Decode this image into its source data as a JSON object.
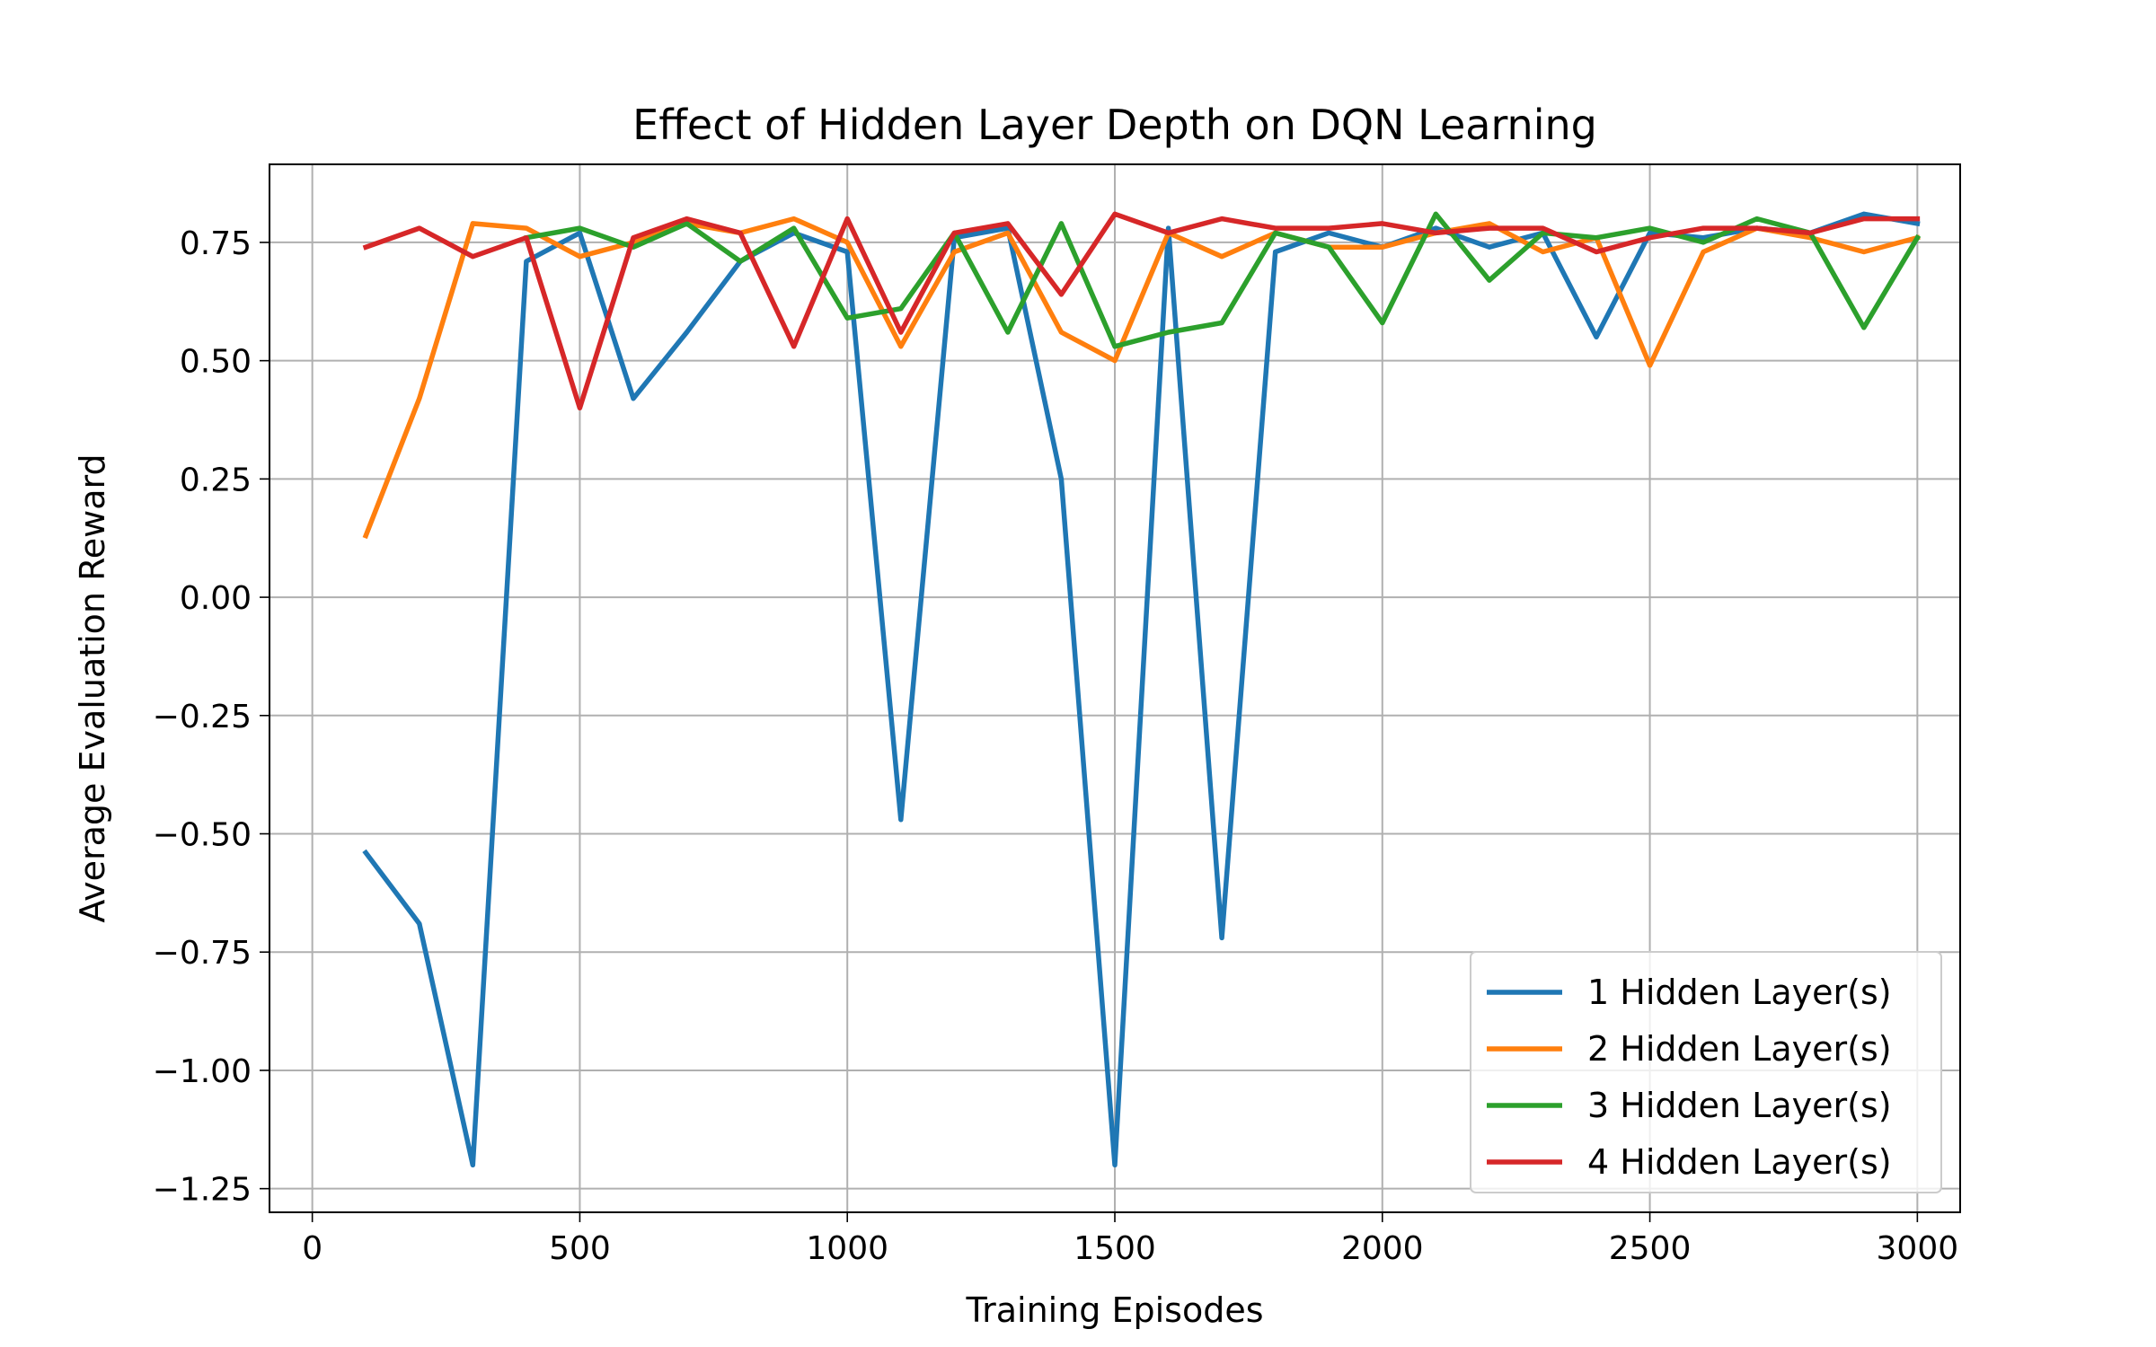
{
  "chart_data": {
    "type": "line",
    "title": "Effect of Hidden Layer Depth on DQN Learning",
    "xlabel": "Training Episodes",
    "ylabel": "Average Evaluation Reward",
    "xlim": [
      -80,
      3080
    ],
    "ylim": [
      -1.3,
      0.915
    ],
    "xticks": [
      0,
      500,
      1000,
      1500,
      2000,
      2500,
      3000
    ],
    "xtick_labels": [
      "0",
      "500",
      "1000",
      "1500",
      "2000",
      "2500",
      "3000"
    ],
    "yticks": [
      -1.25,
      -1.0,
      -0.75,
      -0.5,
      -0.25,
      0.0,
      0.25,
      0.5,
      0.75
    ],
    "ytick_labels": [
      "−1.25",
      "−1.00",
      "−0.75",
      "−0.50",
      "−0.25",
      "0.00",
      "0.25",
      "0.50",
      "0.75"
    ],
    "grid": true,
    "legend_position": "lower-right",
    "x": [
      100,
      200,
      300,
      400,
      500,
      600,
      700,
      800,
      900,
      1000,
      1100,
      1200,
      1300,
      1400,
      1500,
      1600,
      1700,
      1800,
      1900,
      2000,
      2100,
      2200,
      2300,
      2400,
      2500,
      2600,
      2700,
      2800,
      2900,
      3000
    ],
    "series": [
      {
        "name": "1 Hidden Layer(s)",
        "color": "#1f77b4",
        "values": [
          -0.54,
          -0.69,
          -1.2,
          0.71,
          0.77,
          0.42,
          0.56,
          0.71,
          0.77,
          0.73,
          -0.47,
          0.76,
          0.78,
          0.25,
          -1.2,
          0.78,
          -0.72,
          0.73,
          0.77,
          0.74,
          0.78,
          0.74,
          0.77,
          0.55,
          0.77,
          0.76,
          0.78,
          0.77,
          0.81,
          0.79
        ]
      },
      {
        "name": "2 Hidden Layer(s)",
        "color": "#ff7f0e",
        "values": [
          0.13,
          0.42,
          0.79,
          0.78,
          0.72,
          0.75,
          0.79,
          0.77,
          0.8,
          0.75,
          0.53,
          0.73,
          0.77,
          0.56,
          0.5,
          0.77,
          0.72,
          0.77,
          0.74,
          0.74,
          0.77,
          0.79,
          0.73,
          0.76,
          0.49,
          0.73,
          0.78,
          0.76,
          0.73,
          0.76
        ]
      },
      {
        "name": "3 Hidden Layer(s)",
        "color": "#2ca02c",
        "values": [
          null,
          null,
          null,
          0.76,
          0.78,
          0.74,
          0.79,
          0.71,
          0.78,
          0.59,
          0.61,
          0.77,
          0.56,
          0.79,
          0.53,
          0.56,
          0.58,
          0.77,
          0.74,
          0.58,
          0.81,
          0.67,
          0.77,
          0.76,
          0.78,
          0.75,
          0.8,
          0.77,
          0.57,
          0.76
        ]
      },
      {
        "name": "4 Hidden Layer(s)",
        "color": "#d62728",
        "values": [
          0.74,
          0.78,
          0.72,
          0.76,
          0.4,
          0.76,
          0.8,
          0.77,
          0.53,
          0.8,
          0.56,
          0.77,
          0.79,
          0.64,
          0.81,
          0.77,
          0.8,
          0.78,
          0.78,
          0.79,
          0.77,
          0.78,
          0.78,
          0.73,
          0.76,
          0.78,
          0.78,
          0.77,
          0.8,
          0.8
        ]
      }
    ]
  }
}
